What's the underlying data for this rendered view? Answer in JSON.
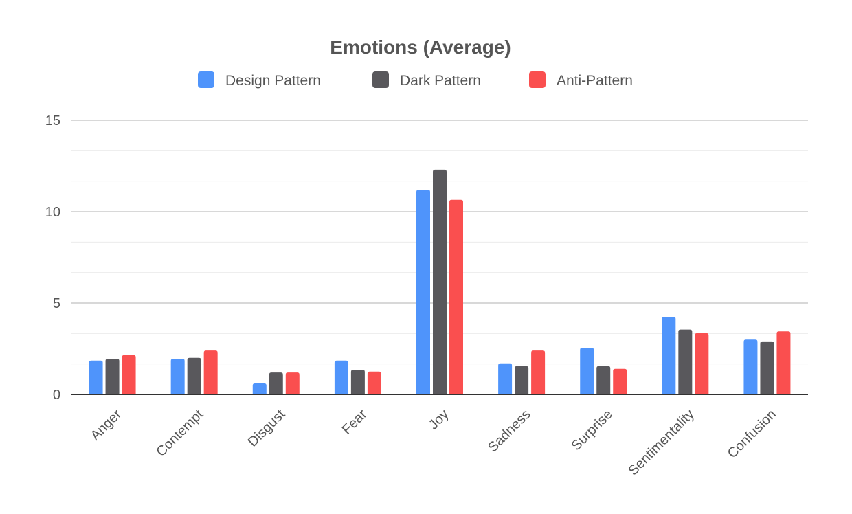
{
  "chart_data": {
    "type": "bar",
    "title": "Emotions (Average)",
    "xlabel": "",
    "ylabel": "",
    "ylim": [
      0,
      15
    ],
    "yticks": [
      0,
      5,
      10,
      15
    ],
    "grid": true,
    "legend_position": "top-center",
    "categories": [
      "Anger",
      "Contempt",
      "Disgust",
      "Fear",
      "Joy",
      "Sadness",
      "Surprise",
      "Sentimentality",
      "Confusion"
    ],
    "series": [
      {
        "name": "Design Pattern",
        "color": "#4f94fb",
        "values": [
          1.85,
          1.95,
          0.6,
          1.85,
          11.2,
          1.7,
          2.55,
          4.25,
          3.0
        ]
      },
      {
        "name": "Dark Pattern",
        "color": "#59585c",
        "values": [
          1.95,
          2.0,
          1.2,
          1.35,
          12.3,
          1.55,
          1.55,
          3.55,
          2.9
        ]
      },
      {
        "name": "Anti-Pattern",
        "color": "#fa4f4f",
        "values": [
          2.15,
          2.4,
          1.2,
          1.25,
          10.65,
          2.4,
          1.4,
          3.35,
          3.45
        ]
      }
    ]
  }
}
